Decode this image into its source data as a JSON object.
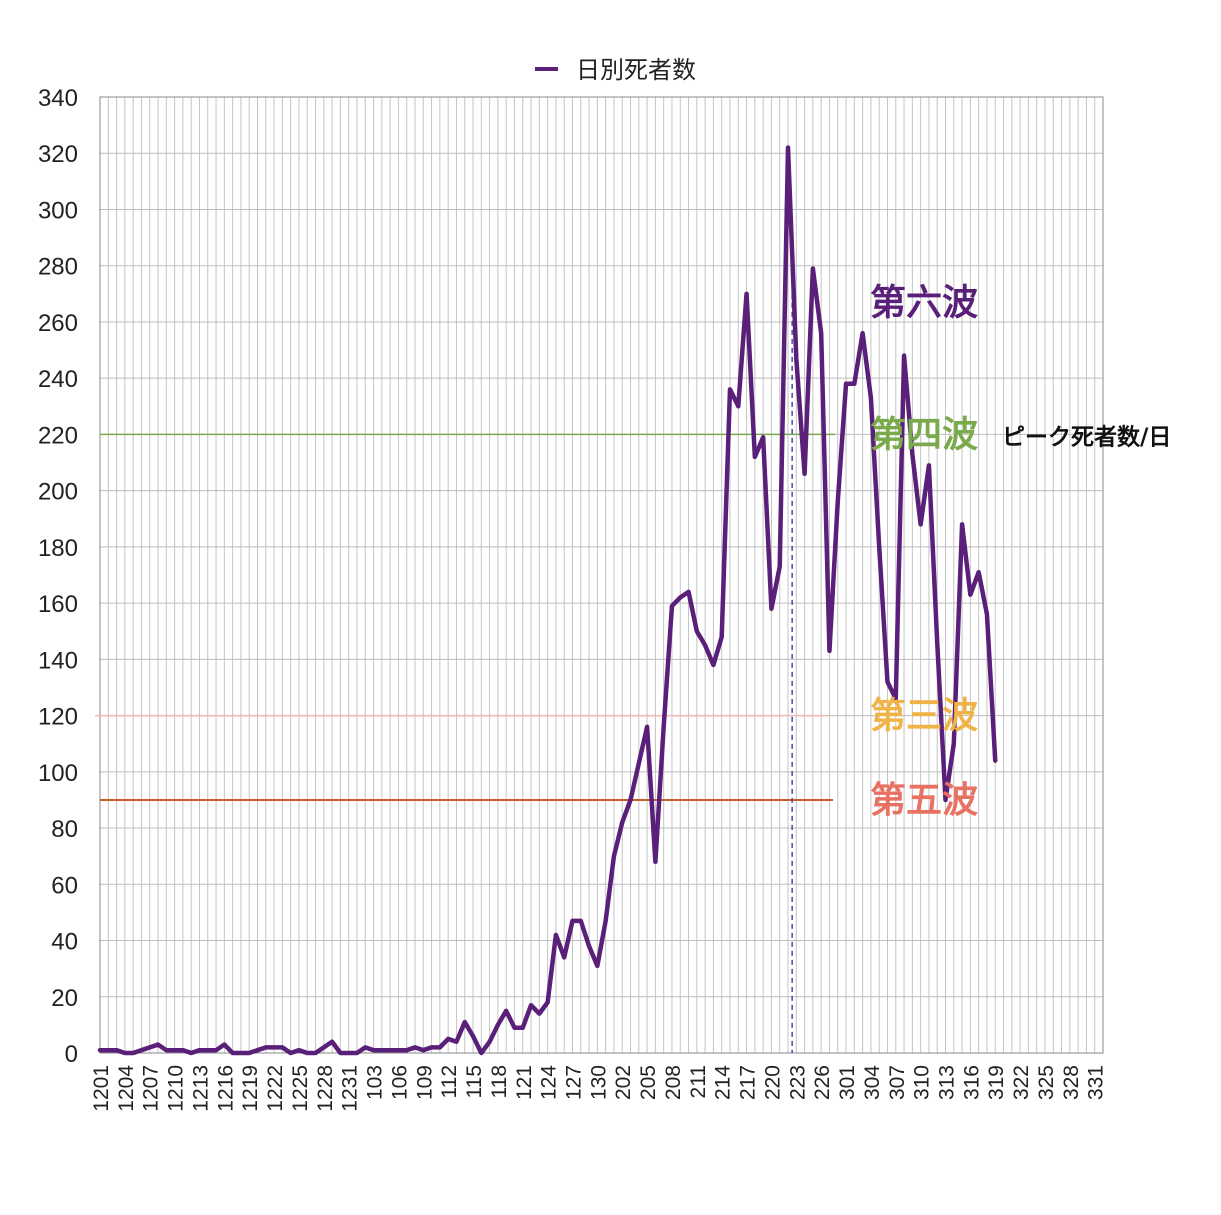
{
  "chart_data": {
    "type": "line",
    "legend": {
      "label": "日別死者数",
      "position": "top-center"
    },
    "series": [
      {
        "name": "日別死者数",
        "color": "#5a1f78",
        "values": [
          1,
          1,
          1,
          0,
          0,
          1,
          2,
          3,
          1,
          1,
          1,
          0,
          1,
          1,
          1,
          3,
          0,
          0,
          0,
          1,
          2,
          2,
          2,
          0,
          1,
          0,
          0,
          2,
          4,
          0,
          0,
          0,
          2,
          1,
          1,
          1,
          1,
          1,
          2,
          1,
          2,
          2,
          5,
          4,
          11,
          6,
          0,
          4,
          10,
          15,
          9,
          9,
          17,
          14,
          18,
          42,
          34,
          47,
          47,
          38,
          31,
          47,
          70,
          82,
          90,
          103,
          116,
          68,
          116,
          159,
          162,
          164,
          150,
          145,
          138,
          148,
          236,
          230,
          270,
          212,
          219,
          158,
          173,
          322,
          247,
          206,
          279,
          256,
          143,
          196,
          238,
          238,
          256,
          233,
          180,
          132,
          126,
          248,
          213,
          188,
          209,
          146,
          90,
          110,
          188,
          163,
          171,
          156,
          104
        ]
      }
    ],
    "x_ticks": [
      "1201",
      "1204",
      "1207",
      "1210",
      "1213",
      "1216",
      "1219",
      "1222",
      "1225",
      "1228",
      "1231",
      "103",
      "106",
      "109",
      "112",
      "115",
      "118",
      "121",
      "124",
      "127",
      "130",
      "202",
      "205",
      "208",
      "211",
      "214",
      "217",
      "220",
      "223",
      "226",
      "301",
      "304",
      "307",
      "310",
      "313",
      "316",
      "319",
      "322",
      "325",
      "328",
      "331"
    ],
    "x_tick_step_days": 3,
    "x_total_days": 121,
    "ylim": [
      0,
      340
    ],
    "y_ticks": [
      0,
      20,
      40,
      60,
      80,
      100,
      120,
      140,
      160,
      180,
      200,
      220,
      240,
      260,
      280,
      300,
      320,
      340
    ],
    "grid": true,
    "reference_lines": [
      {
        "label": "第四波",
        "value": 220,
        "color": "#7aaa4c",
        "note": "ピーク死者数/日",
        "text_y": 220
      },
      {
        "label": "第三波",
        "value": 120,
        "color": "#f2b8b0",
        "text_color": "#f0b347",
        "text_y": 120
      },
      {
        "label": "第五波",
        "value": 90,
        "color": "#cc5b2a",
        "text_color": "#e87162",
        "text_y": 90
      },
      {
        "label": "第六波",
        "value": null,
        "color": null,
        "text_color": "#5a1f78",
        "text_y": 267
      }
    ],
    "vertical_marker": {
      "at_day": 83.5,
      "color": "#4a4aa0",
      "style": "dashed"
    }
  }
}
